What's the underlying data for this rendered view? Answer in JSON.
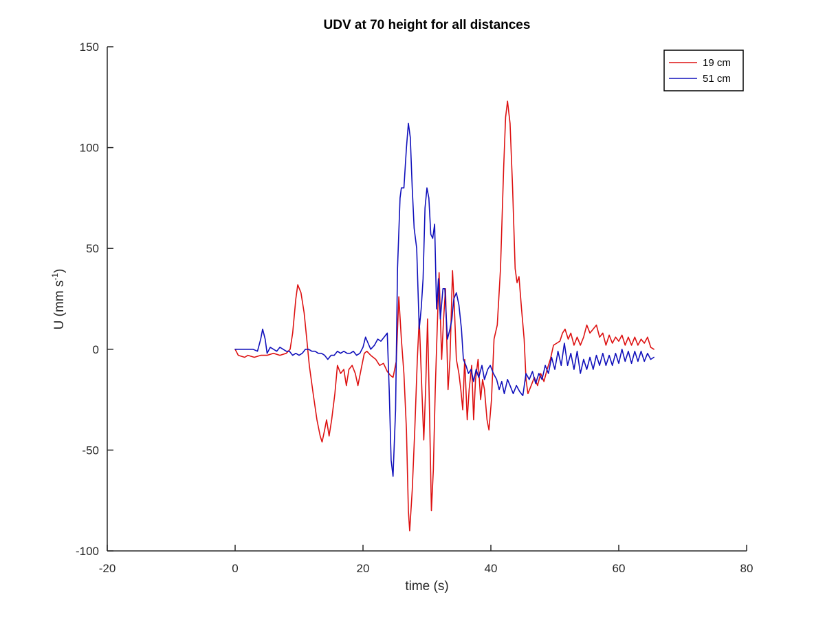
{
  "chart_data": {
    "type": "line",
    "title": "UDV at 70 height for all distances",
    "xlabel": "time (s)",
    "ylabel_main": "U (mm s",
    "ylabel_sup": "-1",
    "ylabel_end": ")",
    "xlim": [
      -20,
      80
    ],
    "ylim": [
      -100,
      150
    ],
    "xticks": [
      -20,
      0,
      20,
      40,
      60,
      80
    ],
    "yticks": [
      -100,
      -50,
      0,
      50,
      100,
      150
    ],
    "grid": false,
    "legend_position": "top-right",
    "series": [
      {
        "name": "19 cm",
        "color": "#dd1111",
        "points": [
          [
            0,
            0
          ],
          [
            0.5,
            -3
          ],
          [
            1.5,
            -4
          ],
          [
            2,
            -3
          ],
          [
            3,
            -4
          ],
          [
            4,
            -3
          ],
          [
            5,
            -3
          ],
          [
            6,
            -2
          ],
          [
            7,
            -3
          ],
          [
            8,
            -2
          ],
          [
            8.6,
            0
          ],
          [
            9,
            8
          ],
          [
            9.5,
            25
          ],
          [
            9.8,
            32
          ],
          [
            10.3,
            28
          ],
          [
            10.8,
            18
          ],
          [
            11.2,
            5
          ],
          [
            11.6,
            -8
          ],
          [
            12.2,
            -22
          ],
          [
            12.8,
            -35
          ],
          [
            13.3,
            -43
          ],
          [
            13.6,
            -46
          ],
          [
            14,
            -40
          ],
          [
            14.3,
            -35
          ],
          [
            14.7,
            -43
          ],
          [
            15.1,
            -35
          ],
          [
            15.6,
            -22
          ],
          [
            16,
            -8
          ],
          [
            16.5,
            -12
          ],
          [
            17,
            -10
          ],
          [
            17.4,
            -18
          ],
          [
            17.8,
            -10
          ],
          [
            18.3,
            -8
          ],
          [
            18.8,
            -12
          ],
          [
            19.2,
            -18
          ],
          [
            19.7,
            -10
          ],
          [
            20.2,
            -2
          ],
          [
            20.6,
            -1
          ],
          [
            21.2,
            -3
          ],
          [
            22,
            -5
          ],
          [
            22.6,
            -8
          ],
          [
            23.2,
            -7
          ],
          [
            23.8,
            -11
          ],
          [
            24.3,
            -13
          ],
          [
            24.7,
            -14
          ],
          [
            25.2,
            -6
          ],
          [
            25.6,
            26
          ],
          [
            26,
            5
          ],
          [
            26.4,
            -12
          ],
          [
            26.8,
            -40
          ],
          [
            27.1,
            -80
          ],
          [
            27.3,
            -90
          ],
          [
            27.7,
            -70
          ],
          [
            28.1,
            -40
          ],
          [
            28.5,
            -5
          ],
          [
            28.8,
            15
          ],
          [
            29.2,
            -20
          ],
          [
            29.5,
            -45
          ],
          [
            29.8,
            -20
          ],
          [
            30.1,
            15
          ],
          [
            30.4,
            -30
          ],
          [
            30.7,
            -80
          ],
          [
            31,
            -60
          ],
          [
            31.3,
            -20
          ],
          [
            31.6,
            10
          ],
          [
            31.9,
            38
          ],
          [
            32.3,
            -5
          ],
          [
            32.6,
            15
          ],
          [
            32.9,
            30
          ],
          [
            33.3,
            -20
          ],
          [
            33.6,
            -5
          ],
          [
            34,
            39
          ],
          [
            34.3,
            20
          ],
          [
            34.6,
            -5
          ],
          [
            35,
            -12
          ],
          [
            35.3,
            -20
          ],
          [
            35.6,
            -30
          ],
          [
            35.9,
            -5
          ],
          [
            36.3,
            -35
          ],
          [
            36.6,
            -20
          ],
          [
            37,
            -8
          ],
          [
            37.3,
            -35
          ],
          [
            37.6,
            -15
          ],
          [
            38,
            -5
          ],
          [
            38.4,
            -25
          ],
          [
            38.7,
            -15
          ],
          [
            39,
            -20
          ],
          [
            39.4,
            -35
          ],
          [
            39.7,
            -40
          ],
          [
            40.1,
            -25
          ],
          [
            40.5,
            5
          ],
          [
            41,
            12
          ],
          [
            41.5,
            40
          ],
          [
            42,
            90
          ],
          [
            42.3,
            115
          ],
          [
            42.6,
            123
          ],
          [
            43,
            112
          ],
          [
            43.4,
            80
          ],
          [
            43.8,
            40
          ],
          [
            44.1,
            33
          ],
          [
            44.4,
            36
          ],
          [
            44.8,
            20
          ],
          [
            45.2,
            5
          ],
          [
            45.5,
            -15
          ],
          [
            45.8,
            -22
          ],
          [
            46.3,
            -18
          ],
          [
            46.8,
            -14
          ],
          [
            47.3,
            -18
          ],
          [
            47.8,
            -12
          ],
          [
            48.3,
            -16
          ],
          [
            48.8,
            -10
          ],
          [
            49.3,
            -5
          ],
          [
            49.8,
            2
          ],
          [
            50.3,
            3
          ],
          [
            50.8,
            4
          ],
          [
            51.2,
            8
          ],
          [
            51.6,
            10
          ],
          [
            52.1,
            5
          ],
          [
            52.5,
            8
          ],
          [
            53,
            2
          ],
          [
            53.5,
            6
          ],
          [
            54,
            2
          ],
          [
            54.5,
            6
          ],
          [
            55,
            12
          ],
          [
            55.5,
            8
          ],
          [
            56,
            10
          ],
          [
            56.5,
            12
          ],
          [
            57,
            6
          ],
          [
            57.5,
            8
          ],
          [
            58,
            2
          ],
          [
            58.5,
            7
          ],
          [
            59,
            3
          ],
          [
            59.5,
            6
          ],
          [
            60,
            4
          ],
          [
            60.5,
            7
          ],
          [
            61,
            2
          ],
          [
            61.5,
            6
          ],
          [
            62,
            2
          ],
          [
            62.5,
            6
          ],
          [
            63,
            2
          ],
          [
            63.5,
            5
          ],
          [
            64,
            3
          ],
          [
            64.5,
            6
          ],
          [
            65,
            1
          ],
          [
            65.5,
            0
          ]
        ]
      },
      {
        "name": "51 cm",
        "color": "#1010bb",
        "points": [
          [
            0,
            0
          ],
          [
            1,
            0
          ],
          [
            2,
            0
          ],
          [
            2.8,
            0
          ],
          [
            3.5,
            -1
          ],
          [
            4,
            5
          ],
          [
            4.3,
            10
          ],
          [
            4.7,
            5
          ],
          [
            5,
            -2
          ],
          [
            5.5,
            1
          ],
          [
            6,
            0
          ],
          [
            6.5,
            -1
          ],
          [
            7,
            1
          ],
          [
            7.5,
            0
          ],
          [
            8,
            -1
          ],
          [
            8.5,
            -1
          ],
          [
            9,
            -3
          ],
          [
            9.5,
            -2
          ],
          [
            10,
            -3
          ],
          [
            10.5,
            -2
          ],
          [
            11,
            0
          ],
          [
            11.5,
            0
          ],
          [
            12,
            -1
          ],
          [
            12.5,
            -1
          ],
          [
            13,
            -2
          ],
          [
            13.5,
            -2
          ],
          [
            14,
            -3
          ],
          [
            14.5,
            -5
          ],
          [
            15,
            -3
          ],
          [
            15.5,
            -3
          ],
          [
            16,
            -1
          ],
          [
            16.5,
            -2
          ],
          [
            17,
            -1
          ],
          [
            17.5,
            -2
          ],
          [
            18,
            -2
          ],
          [
            18.5,
            -1
          ],
          [
            19,
            -3
          ],
          [
            19.5,
            -2
          ],
          [
            20,
            1
          ],
          [
            20.4,
            6
          ],
          [
            20.8,
            3
          ],
          [
            21.2,
            0
          ],
          [
            21.8,
            2
          ],
          [
            22.3,
            5
          ],
          [
            22.8,
            4
          ],
          [
            23.3,
            6
          ],
          [
            23.8,
            8
          ],
          [
            24.1,
            -20
          ],
          [
            24.4,
            -55
          ],
          [
            24.7,
            -63
          ],
          [
            25.1,
            -30
          ],
          [
            25.4,
            40
          ],
          [
            25.8,
            75
          ],
          [
            26,
            80
          ],
          [
            26.4,
            80
          ],
          [
            26.8,
            100
          ],
          [
            27.1,
            112
          ],
          [
            27.4,
            105
          ],
          [
            27.7,
            80
          ],
          [
            28,
            60
          ],
          [
            28.4,
            50
          ],
          [
            28.8,
            10
          ],
          [
            29.1,
            20
          ],
          [
            29.4,
            35
          ],
          [
            29.7,
            70
          ],
          [
            30,
            80
          ],
          [
            30.3,
            75
          ],
          [
            30.6,
            57
          ],
          [
            30.9,
            55
          ],
          [
            31.2,
            62
          ],
          [
            31.5,
            20
          ],
          [
            31.8,
            35
          ],
          [
            32.1,
            15
          ],
          [
            32.5,
            30
          ],
          [
            32.8,
            30
          ],
          [
            33.2,
            5
          ],
          [
            33.6,
            10
          ],
          [
            33.9,
            15
          ],
          [
            34.2,
            25
          ],
          [
            34.6,
            28
          ],
          [
            35,
            22
          ],
          [
            35.4,
            10
          ],
          [
            35.7,
            -5
          ],
          [
            36.1,
            -8
          ],
          [
            36.5,
            -12
          ],
          [
            36.9,
            -10
          ],
          [
            37.3,
            -16
          ],
          [
            37.7,
            -10
          ],
          [
            38.1,
            -14
          ],
          [
            38.6,
            -8
          ],
          [
            39,
            -15
          ],
          [
            39.5,
            -10
          ],
          [
            39.9,
            -8
          ],
          [
            40.4,
            -12
          ],
          [
            40.9,
            -15
          ],
          [
            41.3,
            -20
          ],
          [
            41.7,
            -16
          ],
          [
            42.1,
            -22
          ],
          [
            42.6,
            -15
          ],
          [
            43,
            -18
          ],
          [
            43.5,
            -22
          ],
          [
            44,
            -18
          ],
          [
            44.5,
            -21
          ],
          [
            45,
            -23
          ],
          [
            45.5,
            -12
          ],
          [
            46,
            -15
          ],
          [
            46.5,
            -11
          ],
          [
            47,
            -17
          ],
          [
            47.5,
            -12
          ],
          [
            48,
            -15
          ],
          [
            48.5,
            -8
          ],
          [
            49,
            -12
          ],
          [
            49.5,
            -4
          ],
          [
            50,
            -10
          ],
          [
            50.5,
            -1
          ],
          [
            51,
            -8
          ],
          [
            51.5,
            3
          ],
          [
            52,
            -8
          ],
          [
            52.5,
            -2
          ],
          [
            53,
            -10
          ],
          [
            53.5,
            -1
          ],
          [
            54,
            -12
          ],
          [
            54.5,
            -5
          ],
          [
            55,
            -10
          ],
          [
            55.5,
            -4
          ],
          [
            56,
            -10
          ],
          [
            56.5,
            -3
          ],
          [
            57,
            -8
          ],
          [
            57.5,
            -2
          ],
          [
            58,
            -8
          ],
          [
            58.5,
            -3
          ],
          [
            59,
            -8
          ],
          [
            59.5,
            -2
          ],
          [
            60,
            -7
          ],
          [
            60.5,
            0
          ],
          [
            61,
            -6
          ],
          [
            61.5,
            -1
          ],
          [
            62,
            -7
          ],
          [
            62.5,
            -1
          ],
          [
            63,
            -6
          ],
          [
            63.5,
            -1
          ],
          [
            64,
            -6
          ],
          [
            64.5,
            -2
          ],
          [
            65,
            -5
          ],
          [
            65.5,
            -4
          ]
        ]
      }
    ]
  }
}
